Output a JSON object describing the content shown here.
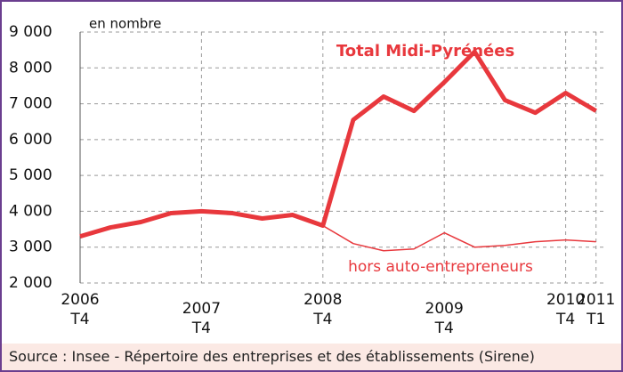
{
  "chart_data": {
    "type": "line",
    "unit_label": "en nombre",
    "source": "Source : Insee - Répertoire des entreprises et des établissements (Sirene)",
    "categories": [
      "2006\nT4",
      null,
      null,
      null,
      "2007\nT4",
      null,
      null,
      null,
      "2008\nT4",
      null,
      null,
      null,
      "2009\nT4",
      null,
      null,
      null,
      "2010\nT4",
      "2011\nT1"
    ],
    "series": [
      {
        "name": "Total Midi-Pyrénées",
        "color": "#e8383d",
        "values": [
          3300,
          3550,
          3700,
          3950,
          4000,
          3950,
          3800,
          3900,
          3600,
          6550,
          7200,
          6800,
          7600,
          8450,
          7100,
          6750,
          7300,
          6800
        ]
      },
      {
        "name": "hors auto-entrepreneurs",
        "color": "#e8383d",
        "values": [
          3300,
          3550,
          3700,
          3950,
          4000,
          3950,
          3800,
          3900,
          3600,
          3100,
          2900,
          2950,
          3400,
          3000,
          3050,
          3150,
          3200,
          3150
        ]
      }
    ],
    "ylim": [
      2000,
      9000
    ],
    "yticks": [
      {
        "value": 2000,
        "label": "2 000"
      },
      {
        "value": 3000,
        "label": "3 000"
      },
      {
        "value": 4000,
        "label": "4 000"
      },
      {
        "value": 5000,
        "label": "5 000"
      },
      {
        "value": 6000,
        "label": "6 000"
      },
      {
        "value": 7000,
        "label": "7 000"
      },
      {
        "value": 8000,
        "label": "8 000"
      },
      {
        "value": 9000,
        "label": "9 000"
      }
    ],
    "grid": true
  }
}
